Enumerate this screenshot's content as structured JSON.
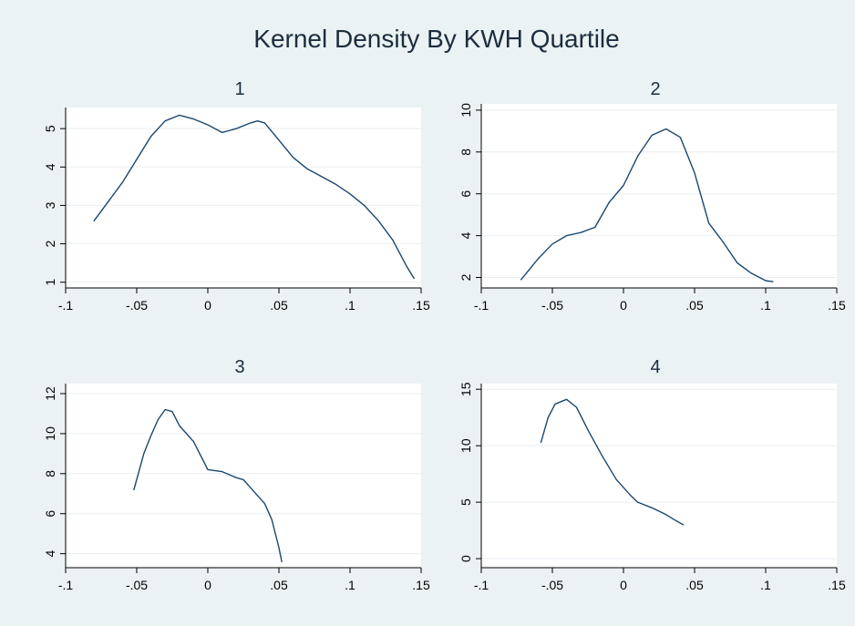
{
  "colors": {
    "background": "#eaf2f3",
    "plot_background": "#ffffff",
    "line": "#1a476f",
    "gridline": "#e9eef2",
    "title": "#1c2d3f"
  },
  "chart_data": {
    "type": "line",
    "title": "Kernel Density By KWH Quartile",
    "panels": [
      {
        "title": "1",
        "x_ticks": [
          -0.1,
          -0.05,
          0,
          0.05,
          0.1,
          0.15
        ],
        "x_tick_labels": [
          "-.1",
          "-.05",
          "0",
          ".05",
          ".1",
          ".15"
        ],
        "y_ticks": [
          1,
          2,
          3,
          4,
          5
        ],
        "y_tick_labels": [
          "1",
          "2",
          "3",
          "4",
          "5"
        ],
        "xlim": [
          -0.1,
          0.15
        ],
        "ylim": [
          0.85,
          5.55
        ],
        "grid": true,
        "series": [
          {
            "x": [
              -0.08,
              -0.07,
              -0.06,
              -0.05,
              -0.04,
              -0.03,
              -0.02,
              -0.01,
              0,
              0.01,
              0.02,
              0.03,
              0.035,
              0.04,
              0.05,
              0.06,
              0.07,
              0.08,
              0.09,
              0.1,
              0.11,
              0.12,
              0.13,
              0.14,
              0.145
            ],
            "y": [
              2.6,
              3.1,
              3.6,
              4.2,
              4.8,
              5.2,
              5.35,
              5.25,
              5.1,
              4.9,
              5.0,
              5.15,
              5.2,
              5.15,
              4.7,
              4.25,
              3.95,
              3.75,
              3.55,
              3.3,
              3.0,
              2.6,
              2.1,
              1.4,
              1.1
            ]
          }
        ]
      },
      {
        "title": "2",
        "x_ticks": [
          -0.1,
          -0.05,
          0,
          0.05,
          0.1,
          0.15
        ],
        "x_tick_labels": [
          "-.1",
          "-.05",
          "0",
          ".05",
          ".1",
          ".15"
        ],
        "y_ticks": [
          2,
          4,
          6,
          8,
          10
        ],
        "y_tick_labels": [
          "2",
          "4",
          "6",
          "8",
          "10"
        ],
        "xlim": [
          -0.1,
          0.15
        ],
        "ylim": [
          1.5,
          10.3
        ],
        "grid": true,
        "series": [
          {
            "x": [
              -0.072,
              -0.06,
              -0.05,
              -0.04,
              -0.03,
              -0.02,
              -0.01,
              0,
              0.01,
              0.02,
              0.03,
              0.04,
              0.05,
              0.06,
              0.07,
              0.08,
              0.09,
              0.1,
              0.105
            ],
            "y": [
              1.9,
              2.9,
              3.6,
              4.0,
              4.15,
              4.4,
              5.6,
              6.4,
              7.8,
              8.8,
              9.1,
              8.7,
              7.0,
              4.6,
              3.7,
              2.7,
              2.2,
              1.85,
              1.8
            ]
          }
        ]
      },
      {
        "title": "3",
        "x_ticks": [
          -0.1,
          -0.05,
          0,
          0.05,
          0.1,
          0.15
        ],
        "x_tick_labels": [
          "-.1",
          "-.05",
          "0",
          ".05",
          ".1",
          ".15"
        ],
        "y_ticks": [
          4,
          6,
          8,
          10,
          12
        ],
        "y_tick_labels": [
          "4",
          "6",
          "8",
          "10",
          "12"
        ],
        "xlim": [
          -0.1,
          0.15
        ],
        "ylim": [
          3.3,
          12.5
        ],
        "grid": true,
        "series": [
          {
            "x": [
              -0.052,
              -0.045,
              -0.04,
              -0.035,
              -0.03,
              -0.025,
              -0.02,
              -0.01,
              0,
              0.01,
              0.02,
              0.025,
              0.03,
              0.04,
              0.045,
              0.05,
              0.052
            ],
            "y": [
              7.2,
              9.0,
              9.9,
              10.7,
              11.2,
              11.1,
              10.4,
              9.6,
              8.2,
              8.1,
              7.8,
              7.7,
              7.3,
              6.5,
              5.7,
              4.3,
              3.6
            ]
          }
        ]
      },
      {
        "title": "4",
        "x_ticks": [
          -0.1,
          -0.05,
          0,
          0.05,
          0.1,
          0.15
        ],
        "x_tick_labels": [
          "-.1",
          "-.05",
          "0",
          ".05",
          ".1",
          ".15"
        ],
        "y_ticks": [
          0,
          5,
          10,
          15
        ],
        "y_tick_labels": [
          "0",
          "5",
          "10",
          "15"
        ],
        "xlim": [
          -0.1,
          0.15
        ],
        "ylim": [
          -0.8,
          15.5
        ],
        "grid": true,
        "series": [
          {
            "x": [
              -0.058,
              -0.053,
              -0.048,
              -0.04,
              -0.033,
              -0.025,
              -0.015,
              -0.005,
              0.005,
              0.01,
              0.02,
              0.03,
              0.035,
              0.042
            ],
            "y": [
              10.3,
              12.5,
              13.7,
              14.1,
              13.4,
              11.4,
              9.1,
              7.0,
              5.6,
              5.0,
              4.5,
              3.9,
              3.5,
              3.0
            ]
          }
        ]
      }
    ]
  }
}
